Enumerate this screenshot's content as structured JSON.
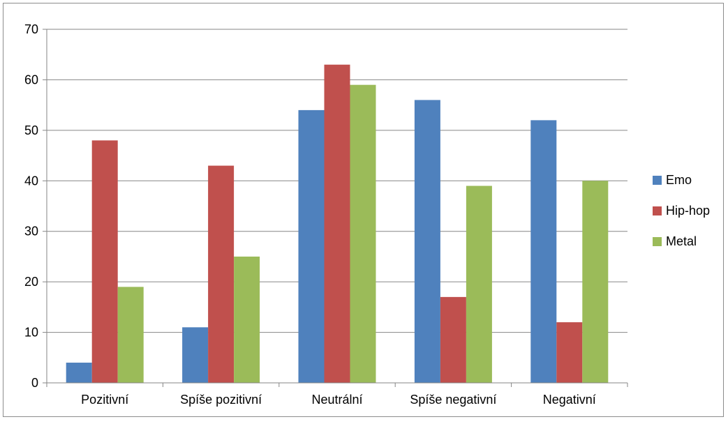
{
  "chart_data": {
    "type": "bar",
    "categories": [
      "Pozitivní",
      "Spíše pozitivní",
      "Neutrální",
      "Spíše negativní",
      "Negativní"
    ],
    "series": [
      {
        "name": "Emo",
        "values": [
          4,
          11,
          54,
          56,
          52
        ],
        "color": "#4f81bd"
      },
      {
        "name": "Hip-hop",
        "values": [
          48,
          43,
          63,
          17,
          12
        ],
        "color": "#c0504d"
      },
      {
        "name": "Metal",
        "values": [
          19,
          25,
          59,
          39,
          40
        ],
        "color": "#9bbb59"
      }
    ],
    "yticks": [
      "0",
      "10",
      "20",
      "30",
      "40",
      "50",
      "60",
      "70"
    ],
    "ylim": [
      0,
      70
    ],
    "grid": true,
    "legend_position": "right",
    "title": "",
    "xlabel": "",
    "ylabel": ""
  }
}
